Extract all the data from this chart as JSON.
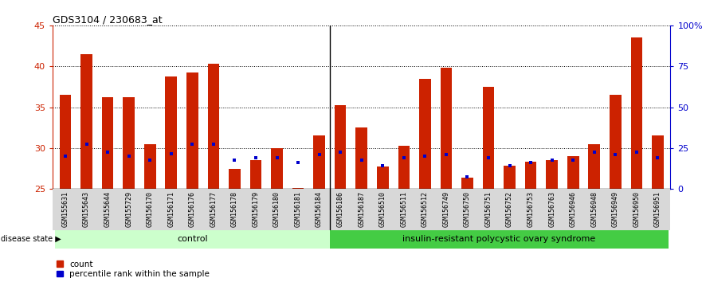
{
  "title": "GDS3104 / 230683_at",
  "samples": [
    "GSM155631",
    "GSM155643",
    "GSM155644",
    "GSM155729",
    "GSM156170",
    "GSM156171",
    "GSM156176",
    "GSM156177",
    "GSM156178",
    "GSM156179",
    "GSM156180",
    "GSM156181",
    "GSM156184",
    "GSM156186",
    "GSM156187",
    "GSM156510",
    "GSM156511",
    "GSM156512",
    "GSM156749",
    "GSM156750",
    "GSM156751",
    "GSM156752",
    "GSM156753",
    "GSM156763",
    "GSM156946",
    "GSM156948",
    "GSM156949",
    "GSM156950",
    "GSM156951"
  ],
  "count_values": [
    36.5,
    41.5,
    36.2,
    36.2,
    30.5,
    38.8,
    39.2,
    40.3,
    27.5,
    28.5,
    30.0,
    25.1,
    31.5,
    35.2,
    32.5,
    27.7,
    30.3,
    38.5,
    39.8,
    26.4,
    37.5,
    27.8,
    28.3,
    28.5,
    29.0,
    30.5,
    36.5,
    43.5,
    31.5
  ],
  "percentile_values": [
    29.0,
    30.5,
    29.5,
    29.0,
    28.5,
    29.3,
    30.5,
    30.5,
    28.5,
    28.8,
    28.8,
    28.2,
    29.2,
    29.5,
    28.5,
    27.8,
    28.8,
    29.0,
    29.2,
    26.5,
    28.8,
    27.8,
    28.2,
    28.5,
    28.5,
    29.5,
    29.2,
    29.5,
    28.8
  ],
  "control_count": 13,
  "disease_count": 16,
  "bar_color": "#cc2200",
  "percentile_color": "#0000cc",
  "control_label": "control",
  "disease_label": "insulin-resistant polycystic ovary syndrome",
  "control_bg": "#ccffcc",
  "disease_bg": "#44cc44",
  "ymin": 25,
  "ymax": 45,
  "yticks_left": [
    25,
    30,
    35,
    40,
    45
  ],
  "yticks_right": [
    0,
    25,
    50,
    75,
    100
  ],
  "ytick_right_labels": [
    "0",
    "25",
    "50",
    "75",
    "100%"
  ],
  "legend_count": "count",
  "legend_pct": "percentile rank within the sample",
  "disease_state_label": "disease state"
}
